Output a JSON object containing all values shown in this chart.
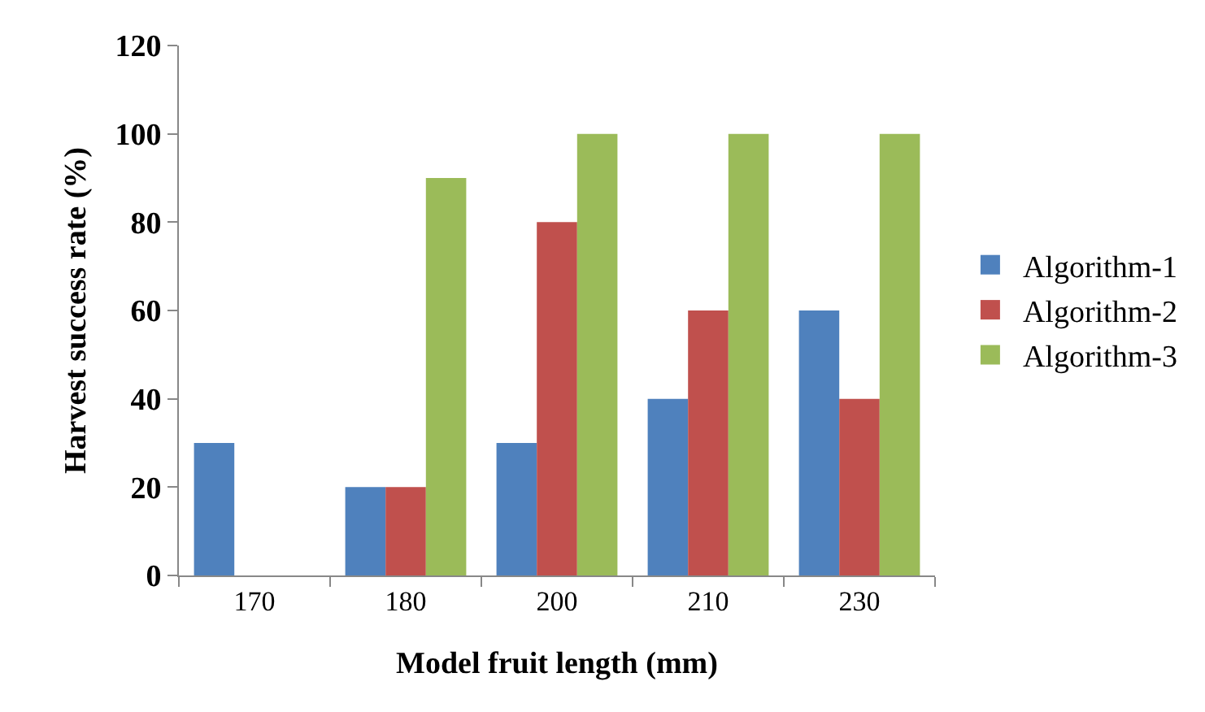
{
  "chart_data": {
    "type": "bar",
    "xlabel": "Model fruit length (mm)",
    "ylabel": "Harvest success rate (%)",
    "categories": [
      "170",
      "180",
      "200",
      "210",
      "230"
    ],
    "series": [
      {
        "name": "Algorithm-1",
        "color": "#4f81bd",
        "values": [
          30,
          20,
          30,
          40,
          60
        ]
      },
      {
        "name": "Algorithm-2",
        "color": "#c0504d",
        "values": [
          0,
          20,
          80,
          60,
          40
        ]
      },
      {
        "name": "Algorithm-3",
        "color": "#9bbb59",
        "values": [
          0,
          90,
          100,
          100,
          100
        ]
      }
    ],
    "ylim": [
      0,
      120
    ],
    "yticks": [
      0,
      20,
      40,
      60,
      80,
      100,
      120
    ],
    "grid": false,
    "legend": "right"
  }
}
